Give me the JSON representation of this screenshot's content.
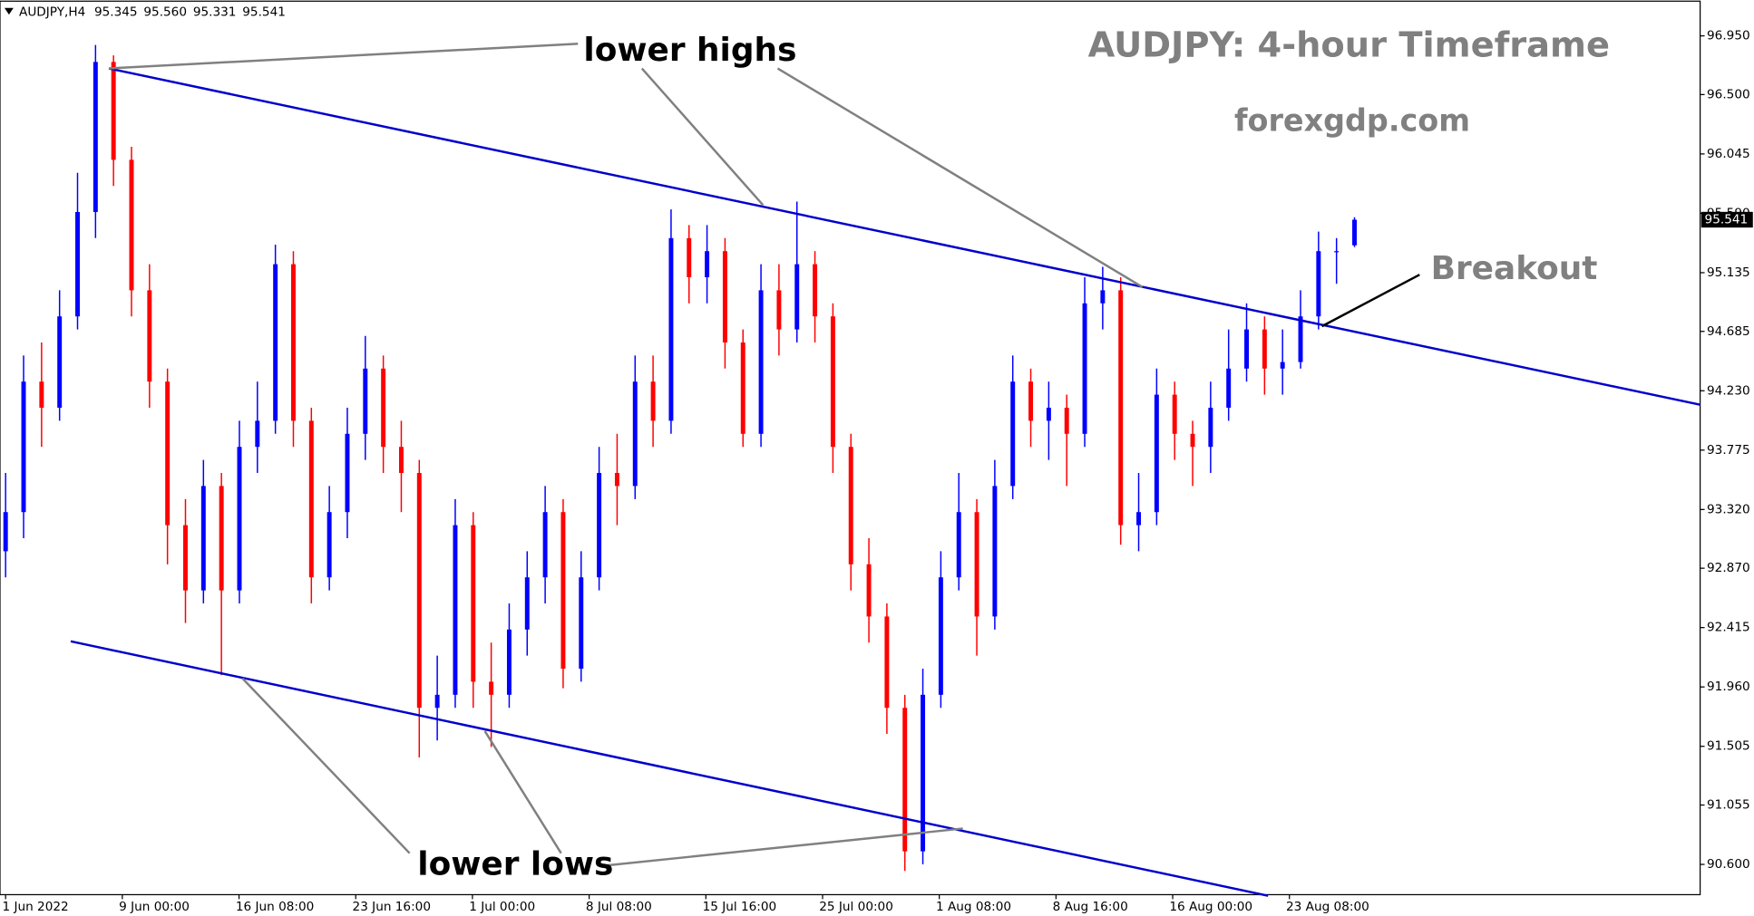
{
  "chart_data": {
    "type": "candlestick",
    "symbol": "AUDJPY,H4",
    "ohlc_labels": [
      "95.345",
      "95.560",
      "95.331",
      "95.541"
    ],
    "title": "AUDJPY: 4-hour Timeframe",
    "subtitle": "forexgdp.com",
    "annotations": {
      "lower_highs": "lower highs",
      "lower_lows": "lower lows",
      "breakout": "Breakout"
    },
    "last_price_label": "95.541",
    "bull_color": "#0000ff",
    "bear_color": "#ff0000",
    "x_labels": [
      "1 Jun 2022",
      "9 Jun 00:00",
      "16 Jun 08:00",
      "23 Jun 16:00",
      "1 Jul 00:00",
      "8 Jul 08:00",
      "15 Jul 16:00",
      "25 Jul 00:00",
      "1 Aug 08:00",
      "8 Aug 16:00",
      "16 Aug 00:00",
      "23 Aug 08:00"
    ],
    "ylim": [
      90.368,
      97.216
    ],
    "yticks": [
      {
        "value": 96.95,
        "label": "96.950"
      },
      {
        "value": 96.5,
        "label": "96.500"
      },
      {
        "value": 96.045,
        "label": "96.045"
      },
      {
        "value": 95.59,
        "label": "95.590"
      },
      {
        "value": 95.135,
        "label": "95.135"
      },
      {
        "value": 94.685,
        "label": "94.685"
      },
      {
        "value": 94.23,
        "label": "94.230"
      },
      {
        "value": 93.775,
        "label": "93.775"
      },
      {
        "value": 93.32,
        "label": "93.320"
      },
      {
        "value": 92.87,
        "label": "92.870"
      },
      {
        "value": 92.415,
        "label": "92.415"
      },
      {
        "value": 91.96,
        "label": "91.960"
      },
      {
        "value": 91.505,
        "label": "91.505"
      },
      {
        "value": 91.055,
        "label": "91.055"
      },
      {
        "value": 90.6,
        "label": "90.600"
      }
    ],
    "open": [
      93.0,
      93.3,
      94.3,
      94.1,
      94.8,
      95.6,
      96.75,
      96.0,
      95.0,
      94.3,
      93.2,
      92.7,
      93.5,
      92.7,
      93.8,
      94.0,
      95.2,
      94.0,
      92.8,
      93.3,
      93.9,
      94.4,
      93.8,
      93.6,
      91.8,
      91.9,
      93.2,
      92.0,
      91.9,
      92.4,
      92.8,
      93.3,
      92.1,
      92.8,
      93.6,
      93.5,
      94.3,
      94.0,
      95.4,
      95.1,
      95.3,
      94.6,
      93.9,
      95.0,
      94.7,
      95.2,
      94.8,
      93.8,
      92.9,
      92.5,
      91.8,
      90.7,
      91.9,
      92.8,
      93.3,
      92.5,
      93.5,
      94.3,
      94.0,
      94.1,
      93.9,
      94.9,
      95.0,
      93.2,
      93.3,
      94.2,
      93.9,
      93.8,
      94.1,
      94.4,
      94.7,
      94.4,
      94.45,
      94.8,
      95.3,
      95.345
    ],
    "high": [
      93.6,
      94.5,
      94.6,
      95.0,
      95.9,
      96.88,
      96.8,
      96.1,
      95.2,
      94.4,
      93.4,
      93.7,
      93.6,
      94.0,
      94.3,
      95.35,
      95.3,
      94.1,
      93.5,
      94.1,
      94.65,
      94.5,
      94.0,
      93.7,
      92.2,
      93.4,
      93.3,
      92.3,
      92.6,
      93.0,
      93.5,
      93.4,
      93.0,
      93.8,
      93.9,
      94.5,
      94.5,
      95.62,
      95.5,
      95.5,
      95.4,
      94.7,
      95.2,
      95.2,
      95.68,
      95.3,
      94.9,
      93.9,
      93.1,
      92.6,
      91.9,
      92.1,
      93.0,
      93.6,
      93.4,
      93.7,
      94.5,
      94.4,
      94.3,
      94.2,
      95.1,
      95.18,
      95.1,
      93.6,
      94.4,
      94.3,
      94.0,
      94.3,
      94.7,
      94.9,
      94.8,
      94.7,
      95.0,
      95.45,
      95.4,
      95.56
    ],
    "low": [
      92.8,
      93.1,
      93.8,
      94.0,
      94.7,
      95.4,
      95.8,
      94.8,
      94.1,
      92.9,
      92.45,
      92.6,
      92.05,
      92.6,
      93.6,
      93.9,
      93.8,
      92.6,
      92.7,
      93.1,
      93.7,
      93.6,
      93.3,
      91.42,
      91.55,
      91.8,
      91.8,
      91.5,
      91.8,
      92.2,
      92.6,
      91.95,
      92.0,
      92.7,
      93.2,
      93.4,
      93.8,
      93.9,
      94.9,
      94.9,
      94.4,
      93.8,
      93.8,
      94.5,
      94.6,
      94.6,
      93.6,
      92.7,
      92.3,
      91.6,
      90.55,
      90.6,
      91.8,
      92.7,
      92.2,
      92.4,
      93.4,
      93.8,
      93.7,
      93.5,
      93.8,
      94.7,
      93.05,
      93.0,
      93.2,
      93.7,
      93.5,
      93.6,
      94.0,
      94.3,
      94.2,
      94.2,
      94.4,
      94.7,
      95.05,
      95.331
    ],
    "close": [
      93.3,
      94.3,
      94.1,
      94.8,
      95.6,
      96.75,
      96.0,
      95.0,
      94.3,
      93.2,
      92.7,
      93.5,
      92.7,
      93.8,
      94.0,
      95.2,
      94.0,
      92.8,
      93.3,
      93.9,
      94.4,
      93.8,
      93.6,
      91.8,
      91.9,
      93.2,
      92.0,
      91.9,
      92.4,
      92.8,
      93.3,
      92.1,
      92.8,
      93.6,
      93.5,
      94.3,
      94.0,
      95.4,
      95.1,
      95.3,
      94.6,
      93.9,
      95.0,
      94.7,
      95.2,
      94.8,
      93.8,
      92.9,
      92.5,
      91.8,
      90.7,
      91.9,
      92.8,
      93.3,
      92.5,
      93.5,
      94.3,
      94.0,
      94.1,
      93.9,
      94.9,
      95.0,
      93.2,
      93.3,
      94.2,
      93.9,
      93.8,
      94.1,
      94.4,
      94.7,
      94.4,
      94.45,
      94.8,
      95.3,
      95.3,
      95.541
    ]
  }
}
